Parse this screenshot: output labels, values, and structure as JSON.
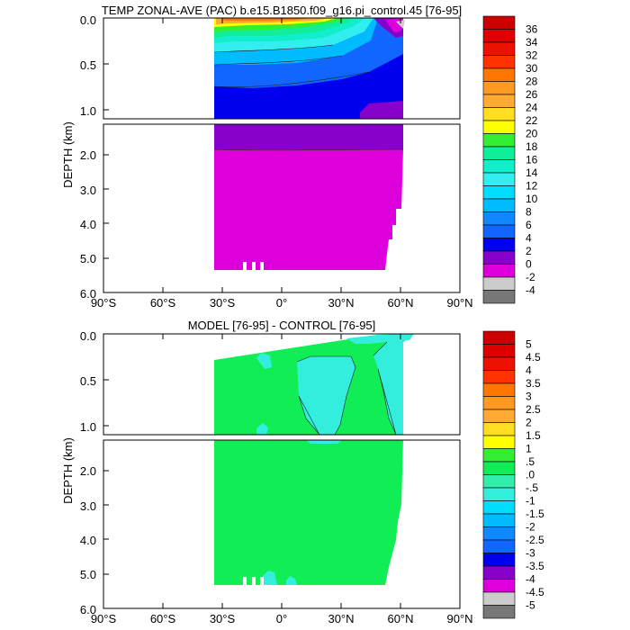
{
  "chart_data": [
    {
      "type": "contour",
      "title": "TEMP ZONAL-AVE (PAC) b.e15.B1850.f09_g16.pi_control.45 [76-95]",
      "ylabel": "DEPTH (km)",
      "xlabel": "",
      "xlim": [
        -90,
        90
      ],
      "x_ticks": [
        {
          "value": -90,
          "label": "90°S"
        },
        {
          "value": -60,
          "label": "60°S"
        },
        {
          "value": -30,
          "label": "30°S"
        },
        {
          "value": 0,
          "label": "0°"
        },
        {
          "value": 30,
          "label": "30°N"
        },
        {
          "value": 60,
          "label": "60°N"
        },
        {
          "value": 90,
          "label": "90°N"
        }
      ],
      "y_ticks_upper": [
        "0.0",
        "0.5",
        "1.0"
      ],
      "y_ticks_lower": [
        "2.0",
        "3.0",
        "4.0",
        "5.0",
        "6.0"
      ],
      "ylim_upper_km": [
        0,
        1.1
      ],
      "ylim_lower_km": [
        1.1,
        6.0
      ],
      "colorbar_labels": [
        "36",
        "34",
        "32",
        "30",
        "28",
        "26",
        "24",
        "22",
        "20",
        "18",
        "16",
        "14",
        "12",
        "10",
        "8",
        "6",
        "4",
        "2",
        "0",
        "-2",
        "-4"
      ],
      "colorbar_colors": [
        "#cc0000",
        "#dd0000",
        "#ee1100",
        "#ff3300",
        "#ff7700",
        "#ff9922",
        "#ffaa33",
        "#ffdd22",
        "#ffff00",
        "#33ee33",
        "#11ee99",
        "#11eecc",
        "#33eeee",
        "#00ddff",
        "#00bbff",
        "#1188ff",
        "#1166ff",
        "#0000ee",
        "#8800cc",
        "#dd00dd",
        "#cccccc",
        "#777777"
      ]
    },
    {
      "type": "contour",
      "title": "MODEL [76-95] - CONTROL [76-95]",
      "ylabel": "DEPTH (km)",
      "xlabel": "",
      "xlim": [
        -90,
        90
      ],
      "x_ticks": [
        {
          "value": -90,
          "label": "90°S"
        },
        {
          "value": -60,
          "label": "60°S"
        },
        {
          "value": -30,
          "label": "30°S"
        },
        {
          "value": 0,
          "label": "0°"
        },
        {
          "value": 30,
          "label": "30°N"
        },
        {
          "value": 60,
          "label": "60°N"
        },
        {
          "value": 90,
          "label": "90°N"
        }
      ],
      "y_ticks_upper": [
        "0.0",
        "0.5",
        "1.0"
      ],
      "y_ticks_lower": [
        "2.0",
        "3.0",
        "4.0",
        "5.0",
        "6.0"
      ],
      "ylim_upper_km": [
        0,
        1.1
      ],
      "ylim_lower_km": [
        1.1,
        6.0
      ],
      "colorbar_labels": [
        "5",
        "4.5",
        "4",
        "3.5",
        "3",
        "2.5",
        "2",
        "1.5",
        "1",
        ".5",
        ".0",
        "-.5",
        "-1",
        "-1.5",
        "-2",
        "-2.5",
        "-3",
        "-3.5",
        "-4",
        "-4.5",
        "-5"
      ],
      "colorbar_colors": [
        "#cc0000",
        "#dd0000",
        "#ee1100",
        "#ff3300",
        "#ff7700",
        "#ff9922",
        "#ffaa33",
        "#ffdd22",
        "#ffff00",
        "#33ee33",
        "#11ee55",
        "#33eeaa",
        "#33eedd",
        "#00ddff",
        "#00bbff",
        "#1188ff",
        "#1166ff",
        "#0000ee",
        "#8800cc",
        "#dd00dd",
        "#cccccc",
        "#777777"
      ]
    }
  ]
}
